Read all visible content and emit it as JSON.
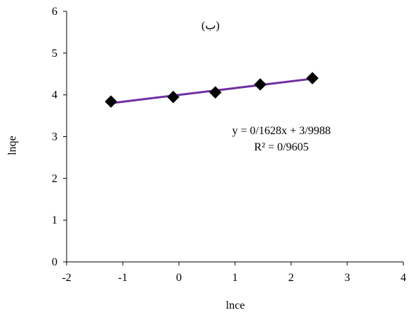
{
  "chart_data": {
    "type": "scatter",
    "title": "(ب)",
    "xlabel": "lnce",
    "ylabel": "lnqe",
    "xlim": [
      -2,
      4
    ],
    "ylim": [
      0,
      6
    ],
    "xticks": [
      -2,
      -1,
      0,
      1,
      2,
      3,
      4
    ],
    "yticks": [
      0,
      1,
      2,
      3,
      4,
      5,
      6
    ],
    "grid": false,
    "series": [
      {
        "marker": "diamond",
        "color": "#000000",
        "x": [
          -1.21,
          -0.1,
          0.65,
          1.45,
          2.38
        ],
        "y": [
          3.84,
          3.95,
          4.06,
          4.25,
          4.4
        ]
      }
    ],
    "trendline": {
      "type": "linear",
      "color": "#7030A0",
      "slope": 0.1628,
      "intercept": 3.9988,
      "x_range": [
        -1.21,
        2.38
      ],
      "equation": "y = 0/1628x + 3/9988",
      "r_squared": "R² = 0/9605"
    }
  }
}
